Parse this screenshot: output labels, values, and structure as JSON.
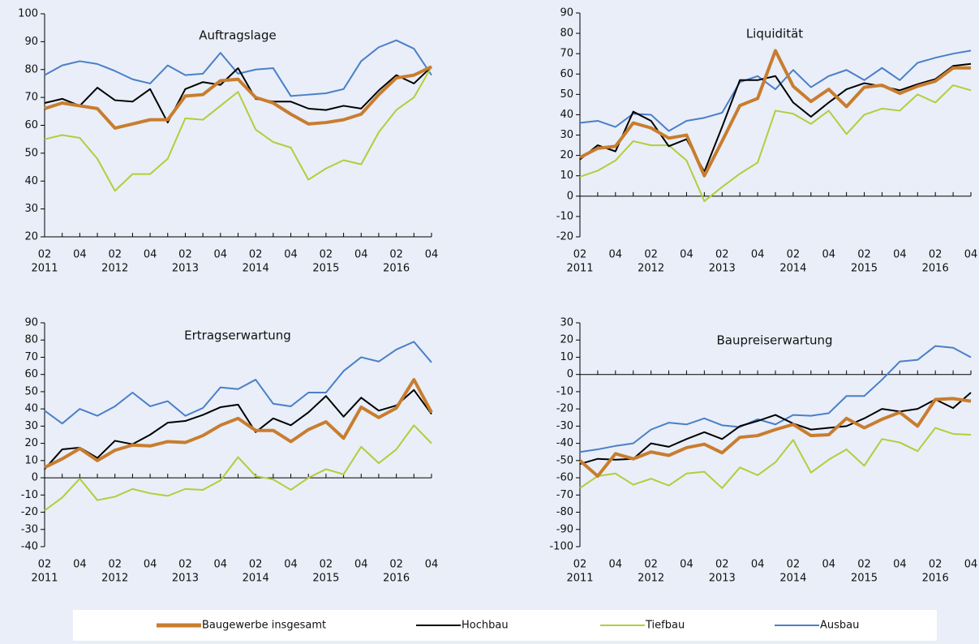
{
  "chart_data": [
    {
      "type": "line",
      "title": "Auftragslage",
      "categories": [
        "02",
        null,
        "04",
        null,
        "02",
        null,
        "04",
        null,
        "02",
        null,
        "04",
        null,
        "02",
        null,
        "04",
        null,
        "02",
        null,
        "04",
        null,
        "02",
        null,
        "04"
      ],
      "category_groups": [
        "2011",
        "2012",
        "2013",
        "2014",
        "2015",
        "2016"
      ],
      "ylim": [
        20,
        100
      ],
      "yticks": [
        20,
        30,
        40,
        50,
        60,
        70,
        80,
        90,
        100
      ],
      "series": [
        {
          "name": "Baugewerbe insgesamt",
          "color": "#c87d2e",
          "values": [
            66,
            68,
            67,
            66,
            59,
            60.5,
            62,
            62,
            70.5,
            71,
            76,
            76.5,
            70,
            68,
            64,
            60.5,
            61,
            62,
            64,
            71,
            77,
            78,
            81
          ]
        },
        {
          "name": "Hochbau",
          "color": "#000000",
          "values": [
            68,
            69.5,
            67,
            73.5,
            69,
            68.5,
            73,
            61,
            73,
            75.5,
            74.5,
            80.5,
            69.5,
            68.5,
            68.5,
            66,
            65.5,
            67,
            66,
            72.5,
            78,
            75,
            81
          ]
        },
        {
          "name": "Tiefbau",
          "color": "#b5cc3a",
          "values": [
            55,
            56.5,
            55.5,
            48,
            36.5,
            42.5,
            42.5,
            48,
            62.5,
            62,
            67,
            72,
            58.5,
            54,
            52,
            40.5,
            44.5,
            47.5,
            46,
            57.5,
            65.5,
            70,
            81
          ]
        },
        {
          "name": "Ausbau",
          "color": "#4a7fc8",
          "values": [
            78,
            81.5,
            83,
            82,
            79.5,
            76.5,
            75,
            81.5,
            78,
            78.5,
            86,
            78.5,
            80,
            80.5,
            70.5,
            71,
            71.5,
            73,
            83,
            88,
            90.5,
            87.5,
            78
          ]
        }
      ]
    },
    {
      "type": "line",
      "title": "Liquidität",
      "categories": [
        "02",
        null,
        "04",
        null,
        "02",
        null,
        "04",
        null,
        "02",
        null,
        "04",
        null,
        "02",
        null,
        "04",
        null,
        "02",
        null,
        "04",
        null,
        "02",
        null,
        "04"
      ],
      "category_groups": [
        "2011",
        "2012",
        "2013",
        "2014",
        "2015",
        "2016"
      ],
      "ylim": [
        -20,
        90
      ],
      "yticks": [
        -20,
        -10,
        0,
        10,
        20,
        30,
        40,
        50,
        60,
        70,
        80,
        90
      ],
      "series": [
        {
          "name": "Baugewerbe insgesamt",
          "color": "#c87d2e",
          "values": [
            19,
            23.5,
            24.5,
            36,
            33.5,
            28.5,
            30,
            10,
            27,
            44.5,
            48,
            71.5,
            54,
            46.5,
            52.5,
            44,
            53.5,
            54.5,
            50.5,
            54,
            56.5,
            63,
            63
          ]
        },
        {
          "name": "Hochbau",
          "color": "#000000",
          "values": [
            18,
            25,
            22,
            41.5,
            37,
            24.5,
            28,
            12,
            34,
            57,
            57,
            59,
            46,
            39,
            46,
            52.5,
            55.5,
            54,
            52,
            55,
            57.5,
            64,
            65
          ]
        },
        {
          "name": "Tiefbau",
          "color": "#b5cc3a",
          "values": [
            9.5,
            12.5,
            17.5,
            27,
            25,
            25,
            17.5,
            -2.5,
            4.5,
            11,
            16.5,
            42,
            40.5,
            35.5,
            42,
            30.5,
            40,
            43,
            42,
            50,
            46,
            54.5,
            52
          ]
        },
        {
          "name": "Ausbau",
          "color": "#4a7fc8",
          "values": [
            36,
            37,
            34,
            40.5,
            40,
            32,
            37,
            38.5,
            41,
            56,
            59,
            52.5,
            62,
            53.5,
            59,
            62,
            57,
            63,
            57,
            65.5,
            68,
            70,
            71.5
          ]
        }
      ]
    },
    {
      "type": "line",
      "title": "Ertragserwartung",
      "categories": [
        "02",
        null,
        "04",
        null,
        "02",
        null,
        "04",
        null,
        "02",
        null,
        "04",
        null,
        "02",
        null,
        "04",
        null,
        "02",
        null,
        "04",
        null,
        "02",
        null,
        "04"
      ],
      "category_groups": [
        "2011",
        "2012",
        "2013",
        "2014",
        "2015",
        "2016"
      ],
      "ylim": [
        -40,
        90
      ],
      "yticks": [
        -40,
        -30,
        -20,
        -10,
        0,
        10,
        20,
        30,
        40,
        50,
        60,
        70,
        80,
        90
      ],
      "series": [
        {
          "name": "Baugewerbe insgesamt",
          "color": "#c87d2e",
          "values": [
            6,
            11,
            17,
            10,
            16,
            19,
            18.5,
            21,
            20.5,
            24.5,
            30.5,
            34.5,
            27.5,
            27.5,
            21,
            28,
            32.5,
            23,
            41,
            35,
            40.5,
            57,
            38
          ]
        },
        {
          "name": "Hochbau",
          "color": "#000000",
          "values": [
            5,
            16.5,
            17.5,
            11.5,
            21.5,
            19.5,
            25,
            32,
            33,
            36.5,
            41,
            42.5,
            26.5,
            34.5,
            30.5,
            38,
            47.5,
            35.5,
            46.5,
            39,
            42,
            51,
            37
          ]
        },
        {
          "name": "Tiefbau",
          "color": "#b5cc3a",
          "values": [
            -19,
            -11.5,
            -0.5,
            -13,
            -11,
            -6.5,
            -9,
            -10.5,
            -6.5,
            -7,
            -1.5,
            12,
            1,
            -1,
            -7,
            0,
            5,
            2,
            18,
            8.5,
            16.5,
            30.5,
            20
          ]
        },
        {
          "name": "Ausbau",
          "color": "#4a7fc8",
          "values": [
            39,
            31.5,
            40,
            36,
            41.5,
            49.5,
            41.5,
            44.5,
            36,
            40.5,
            52.5,
            51.5,
            57,
            43,
            41.5,
            49.5,
            49.5,
            62,
            70,
            67.5,
            74.5,
            79,
            67
          ]
        }
      ]
    },
    {
      "type": "line",
      "title": "Baupreiserwartung",
      "categories": [
        "02",
        null,
        "04",
        null,
        "02",
        null,
        "04",
        null,
        "02",
        null,
        "04",
        null,
        "02",
        null,
        "04",
        null,
        "02",
        null,
        "04",
        null,
        "02",
        null,
        "04"
      ],
      "category_groups": [
        "2011",
        "2012",
        "2013",
        "2014",
        "2015",
        "2016"
      ],
      "ylim": [
        -100,
        30
      ],
      "yticks": [
        -100,
        -90,
        -80,
        -70,
        -60,
        -50,
        -40,
        -30,
        -20,
        -10,
        0,
        10,
        20,
        30
      ],
      "series": [
        {
          "name": "Baugewerbe insgesamt",
          "color": "#c87d2e",
          "values": [
            -50,
            -59,
            -46,
            -49,
            -45,
            -47,
            -42.5,
            -40.5,
            -45.5,
            -36.5,
            -35.5,
            -32,
            -29,
            -35.5,
            -35,
            -25.5,
            -31,
            -26,
            -22,
            -30,
            -14.5,
            -14,
            -15.5
          ]
        },
        {
          "name": "Hochbau",
          "color": "#000000",
          "values": [
            -52,
            -49,
            -49.5,
            -49,
            -40,
            -42,
            -37.5,
            -33.5,
            -37.5,
            -30,
            -27,
            -23.5,
            -28.5,
            -32,
            -31,
            -30,
            -25.5,
            -20,
            -21.5,
            -20,
            -14.5,
            -19.5,
            -10.5
          ]
        },
        {
          "name": "Tiefbau",
          "color": "#b5cc3a",
          "values": [
            -66,
            -59,
            -57.5,
            -64,
            -60.5,
            -64.5,
            -57.5,
            -56.5,
            -66,
            -54,
            -58.5,
            -51,
            -38,
            -57,
            -49.5,
            -43.5,
            -53,
            -37.5,
            -39.5,
            -44.5,
            -31,
            -34.5,
            -35
          ]
        },
        {
          "name": "Ausbau",
          "color": "#4a7fc8",
          "values": [
            -45,
            -43.5,
            -41.5,
            -40,
            -32,
            -28,
            -29,
            -25.5,
            -29.5,
            -30.5,
            -26,
            -29,
            -23.5,
            -24,
            -22.5,
            -12.5,
            -12.5,
            -3,
            7.5,
            8.5,
            16.5,
            15.5,
            10
          ]
        }
      ]
    }
  ]
}
